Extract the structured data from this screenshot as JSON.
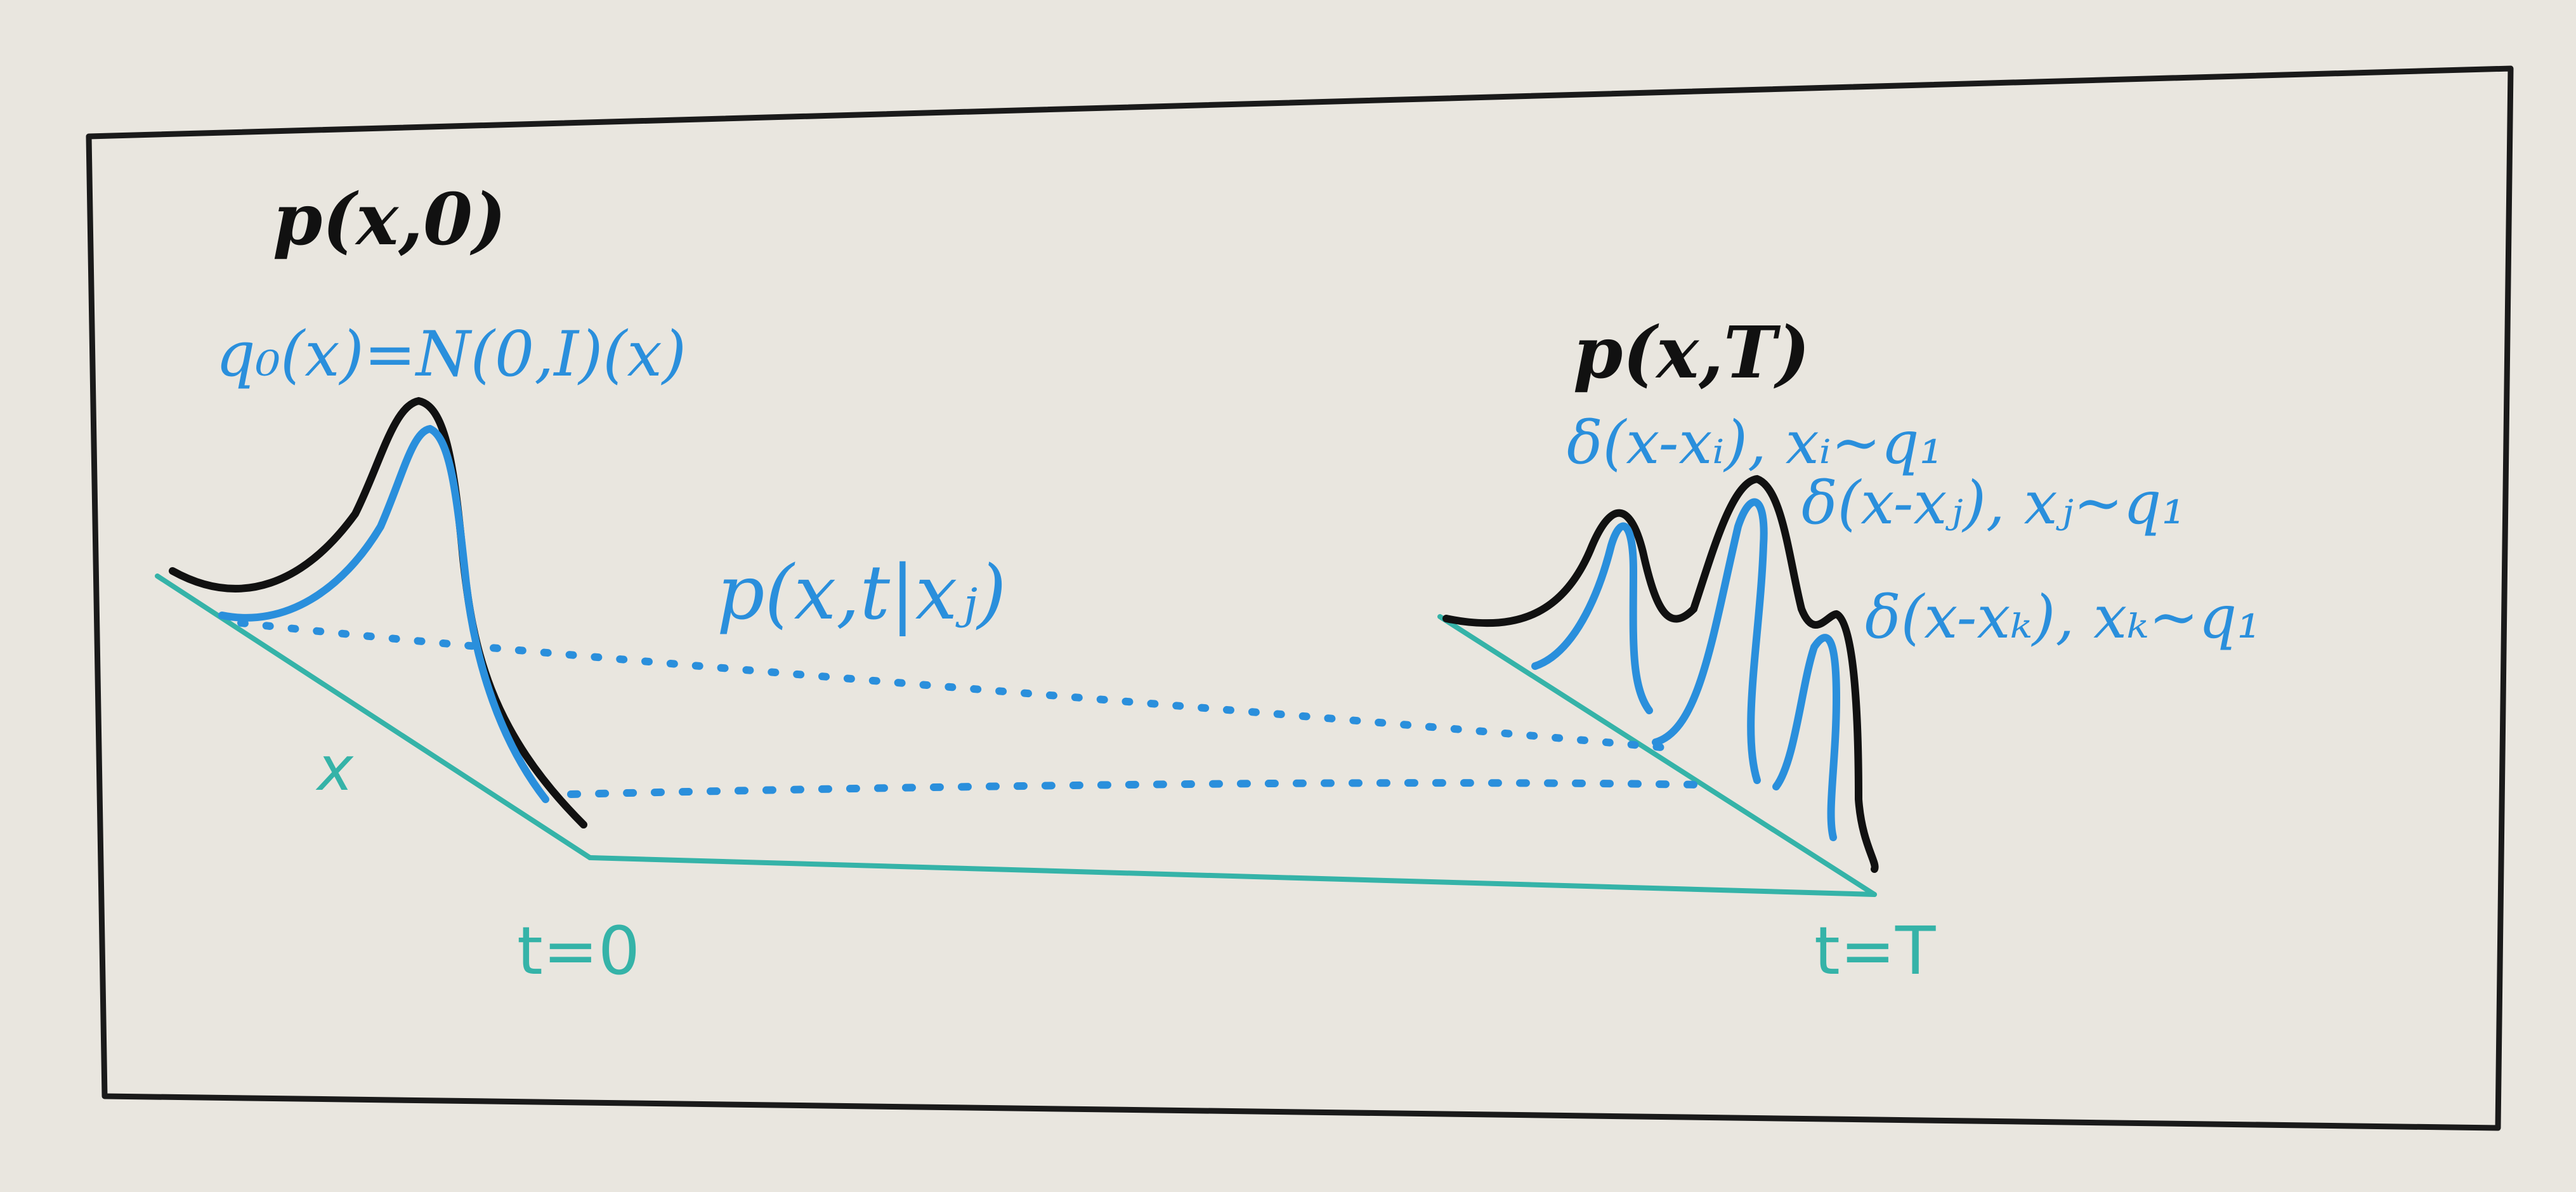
{
  "colors": {
    "board": "#e9e6df",
    "frame": "#1a1a1a",
    "black_marker": "#111111",
    "blue_marker": "#2a8fdc",
    "teal_marker": "#35b3a8"
  },
  "left": {
    "title": "p(x,0)",
    "prior": "q₀(x)=N(0,I)(x)",
    "axis_label": "x",
    "time_label": "t=0"
  },
  "middle": {
    "conditional": "p(x,t|xⱼ)"
  },
  "right": {
    "title": "p(x,T)",
    "deltas": [
      "δ(x-xᵢ), xᵢ~q₁",
      "δ(x-xⱼ), xⱼ~q₁",
      "δ(x-xₖ), xₖ~q₁"
    ],
    "time_label": "t=T"
  }
}
